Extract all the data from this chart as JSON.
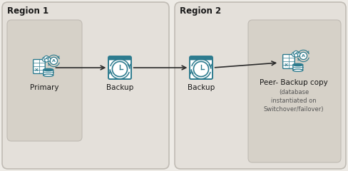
{
  "bg_color": "#eeebe6",
  "region1_bg": "#e4e0da",
  "region2_bg": "#e4e0da",
  "inner_box_bg": "#d6d1c8",
  "border_color": "#c0bbb4",
  "teal_color": "#2d7b8e",
  "text_color": "#1a1a1a",
  "sub_text_color": "#555555",
  "arrow_color": "#2a2a2a",
  "region1_label": "Region 1",
  "region2_label": "Region 2",
  "labels": [
    "Primary",
    "Backup",
    "Backup",
    "Peer- Backup copy"
  ],
  "sub_label": "(database\ninstantiated on\nSwitchover/failover)",
  "title_fontsize": 8.5,
  "label_fontsize": 7.5,
  "sublabel_fontsize": 6.0,
  "figw": 4.88,
  "figh": 2.4,
  "dpi": 100
}
